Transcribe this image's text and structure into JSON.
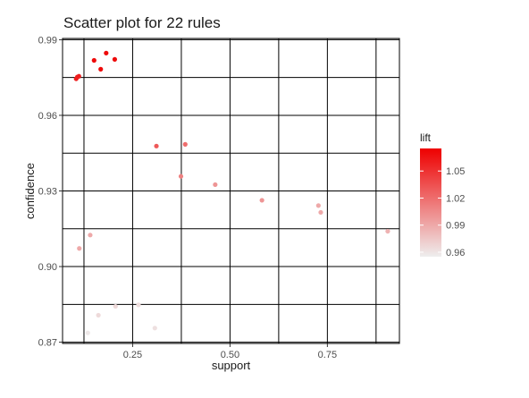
{
  "chart_data": {
    "type": "scatter",
    "title": "Scatter plot for 22 rules",
    "xlabel": "support",
    "ylabel": "confidence",
    "xlim": [
      0.07,
      0.935
    ],
    "ylim": [
      0.8695,
      0.9905
    ],
    "x_ticks": [
      0.25,
      0.5,
      0.75
    ],
    "x_tick_labels": [
      "0.25",
      "0.50",
      "0.75"
    ],
    "y_ticks": [
      0.87,
      0.9,
      0.93,
      0.96,
      0.99
    ],
    "y_tick_labels": [
      "0.87",
      "0.90",
      "0.93",
      "0.96",
      "0.99"
    ],
    "grid": true,
    "color_by": "lift",
    "legend": {
      "title": "lift",
      "position": "right",
      "labels": [
        "1.05",
        "1.02",
        "0.99",
        "0.96"
      ],
      "values": [
        1.05,
        1.02,
        0.99,
        0.96
      ],
      "range": [
        0.955,
        1.075
      ],
      "color_low": "#eeeeee",
      "color_high": "#ee0000"
    },
    "points": [
      {
        "x": 0.105,
        "y": 0.9745,
        "lift": 1.06
      },
      {
        "x": 0.108,
        "y": 0.9752,
        "lift": 1.06
      },
      {
        "x": 0.112,
        "y": 0.9755,
        "lift": 1.06
      },
      {
        "x": 0.151,
        "y": 0.9818,
        "lift": 1.07
      },
      {
        "x": 0.168,
        "y": 0.9783,
        "lift": 1.07
      },
      {
        "x": 0.182,
        "y": 0.9847,
        "lift": 1.07
      },
      {
        "x": 0.204,
        "y": 0.9822,
        "lift": 1.07
      },
      {
        "x": 0.311,
        "y": 0.9478,
        "lift": 1.03
      },
      {
        "x": 0.385,
        "y": 0.9485,
        "lift": 1.02
      },
      {
        "x": 0.374,
        "y": 0.9358,
        "lift": 1.01
      },
      {
        "x": 0.462,
        "y": 0.9325,
        "lift": 1.0
      },
      {
        "x": 0.582,
        "y": 0.9263,
        "lift": 1.0
      },
      {
        "x": 0.727,
        "y": 0.9242,
        "lift": 0.99
      },
      {
        "x": 0.733,
        "y": 0.9215,
        "lift": 0.99
      },
      {
        "x": 0.905,
        "y": 0.914,
        "lift": 0.985
      },
      {
        "x": 0.113,
        "y": 0.9072,
        "lift": 0.99
      },
      {
        "x": 0.141,
        "y": 0.9125,
        "lift": 0.99
      },
      {
        "x": 0.162,
        "y": 0.8807,
        "lift": 0.965
      },
      {
        "x": 0.206,
        "y": 0.8842,
        "lift": 0.965
      },
      {
        "x": 0.265,
        "y": 0.8848,
        "lift": 0.963
      },
      {
        "x": 0.307,
        "y": 0.8756,
        "lift": 0.962
      },
      {
        "x": 0.135,
        "y": 0.8737,
        "lift": 0.958
      }
    ]
  }
}
